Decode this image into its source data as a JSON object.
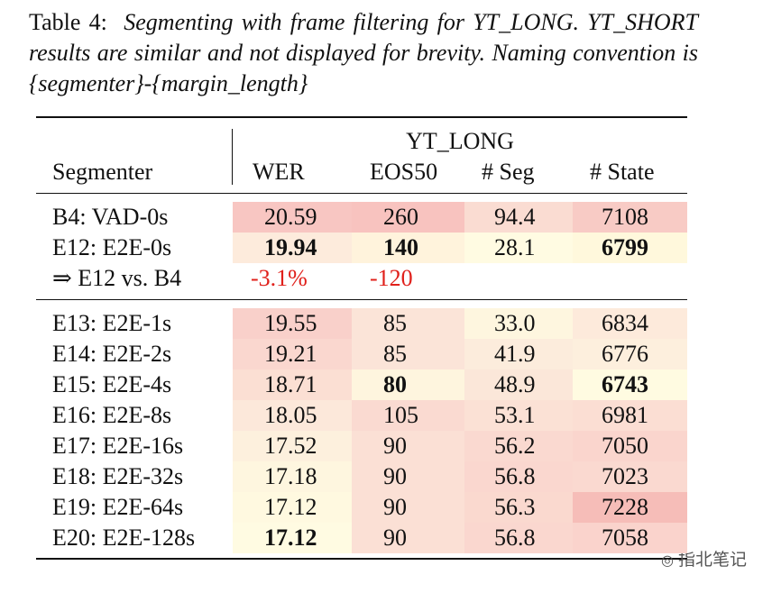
{
  "caption": {
    "label": "Table 4:",
    "text": "Segmenting with frame filtering for YT_LONG. YT_SHORT results are similar and not displayed for brevity. Naming convention is {segmenter}-{margin_length}"
  },
  "table": {
    "group_header": "YT_LONG",
    "columns": [
      "Segmenter",
      "WER",
      "EOS50",
      "# Seg",
      "# State"
    ],
    "groups": [
      {
        "rows": [
          {
            "label": "B4: VAD-0s",
            "cells": [
              "20.59",
              "260",
              "94.4",
              "7108"
            ],
            "bold": [
              false,
              false,
              false,
              false
            ],
            "colors": [
              "#f8c6c2",
              "#f8c3bf",
              "#fadcd2",
              "#f8cbc5"
            ]
          },
          {
            "label": "E12: E2E-0s",
            "cells": [
              "19.94",
              "140",
              "28.1",
              "6799"
            ],
            "bold": [
              true,
              true,
              false,
              true
            ],
            "colors": [
              "#fdebdc",
              "#fff3dc",
              "#fffbe2",
              "#fff8dc"
            ]
          },
          {
            "label": "⇒ E12 vs. B4",
            "cells": [
              "-3.1%",
              "-120"
            ],
            "bold": [
              false,
              false
            ],
            "text_color": "#e0201b"
          }
        ]
      },
      {
        "rows": [
          {
            "label": "E13: E2E-1s",
            "cells": [
              "19.55",
              "85",
              "33.0",
              "6834"
            ],
            "bold": [
              false,
              false,
              false,
              false
            ],
            "colors": [
              "#f9d0ca",
              "#fbe4d8",
              "#fef6df",
              "#fdeadb"
            ]
          },
          {
            "label": "E14: E2E-2s",
            "cells": [
              "19.21",
              "85",
              "41.9",
              "6776"
            ],
            "bold": [
              false,
              false,
              false,
              false
            ],
            "colors": [
              "#fad7cf",
              "#fbe4d8",
              "#fcecdc",
              "#fdefdd"
            ]
          },
          {
            "label": "E15: E2E-4s",
            "cells": [
              "18.71",
              "80",
              "48.9",
              "6743"
            ],
            "bold": [
              false,
              true,
              false,
              true
            ],
            "colors": [
              "#fbdfd3",
              "#fef5de",
              "#fbe7d9",
              "#fffbe1"
            ]
          },
          {
            "label": "E16: E2E-8s",
            "cells": [
              "18.05",
              "105",
              "53.1",
              "6981"
            ],
            "bold": [
              false,
              false,
              false,
              false
            ],
            "colors": [
              "#fce8da",
              "#fadad1",
              "#fbe1d5",
              "#fbded3"
            ]
          },
          {
            "label": "E17: E2E-16s",
            "cells": [
              "17.52",
              "90",
              "56.2",
              "7050"
            ],
            "bold": [
              false,
              false,
              false,
              false
            ],
            "colors": [
              "#fdf0dd",
              "#fbe0d5",
              "#fad9d0",
              "#fad5cd"
            ]
          },
          {
            "label": "E18: E2E-32s",
            "cells": [
              "17.18",
              "90",
              "56.8",
              "7023"
            ],
            "bold": [
              false,
              false,
              false,
              false
            ],
            "colors": [
              "#fef6df",
              "#fbe0d5",
              "#fad7cf",
              "#fad9d0"
            ]
          },
          {
            "label": "E19: E2E-64s",
            "cells": [
              "17.12",
              "90",
              "56.3",
              "7228"
            ],
            "bold": [
              false,
              false,
              false,
              false
            ],
            "colors": [
              "#fff9e0",
              "#fbe0d5",
              "#fad9cf",
              "#f6bdb8"
            ]
          },
          {
            "label": "E20: E2E-128s",
            "cells": [
              "17.12",
              "90",
              "56.8",
              "7058"
            ],
            "bold": [
              true,
              false,
              false,
              false
            ],
            "colors": [
              "#fffbe2",
              "#fbe0d5",
              "#fad7cf",
              "#fad3cc"
            ]
          }
        ]
      }
    ]
  },
  "watermark": "指北笔记"
}
